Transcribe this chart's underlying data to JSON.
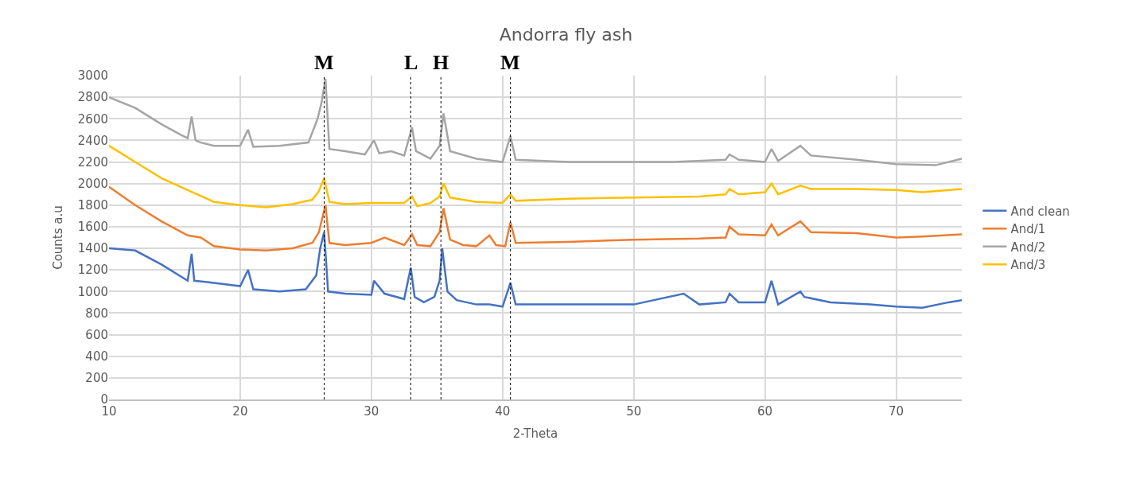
{
  "chart_data": {
    "type": "line",
    "title": "Andorra fly ash",
    "xlabel": "2-Theta",
    "ylabel": "Counts a.u",
    "xlim": [
      10,
      75
    ],
    "xticks": [
      10,
      20,
      30,
      40,
      50,
      60,
      70
    ],
    "ylim": [
      0,
      3000
    ],
    "yticks": [
      0,
      200,
      400,
      600,
      800,
      1000,
      1200,
      1400,
      1600,
      1800,
      2000,
      2200,
      2400,
      2600,
      2800,
      3000
    ],
    "grid": true,
    "legend": "right",
    "marker": "none",
    "line_style": "solid",
    "series": [
      {
        "name": "And clean",
        "color": "#4472c4",
        "x": [
          10,
          12,
          14,
          16,
          16.3,
          16.5,
          18,
          20,
          20.6,
          21,
          23,
          25,
          25.8,
          26.1,
          26.4,
          26.7,
          28,
          30,
          30.2,
          31,
          32.5,
          33.0,
          33.3,
          34,
          34.8,
          35.2,
          35.4,
          35.8,
          36.5,
          38,
          39,
          40,
          40.6,
          41,
          45,
          50,
          53.8,
          55,
          57,
          57.3,
          58,
          60,
          60.5,
          61,
          62.7,
          63,
          65,
          68,
          70,
          72,
          74,
          75
        ],
        "values": [
          1400,
          1380,
          1250,
          1100,
          1350,
          1100,
          1080,
          1050,
          1200,
          1020,
          1000,
          1020,
          1150,
          1400,
          1550,
          1000,
          980,
          970,
          1100,
          980,
          930,
          1220,
          950,
          900,
          950,
          1100,
          1400,
          1000,
          920,
          880,
          880,
          860,
          1080,
          880,
          880,
          880,
          980,
          880,
          900,
          980,
          900,
          900,
          1100,
          880,
          1000,
          950,
          900,
          880,
          860,
          850,
          900,
          920
        ]
      },
      {
        "name": "And/1",
        "color": "#ed7d31",
        "x": [
          10,
          12,
          14,
          16,
          17,
          18,
          20,
          22,
          24,
          25.5,
          26.0,
          26.5,
          26.8,
          28,
          30,
          31,
          32.5,
          33.1,
          33.5,
          34.5,
          35.2,
          35.5,
          36,
          37,
          38,
          39,
          39.5,
          40.2,
          40.6,
          41,
          45,
          50,
          55,
          57,
          57.3,
          58,
          60,
          60.5,
          61,
          62.7,
          63.5,
          67,
          70,
          72,
          75
        ],
        "values": [
          1970,
          1800,
          1650,
          1520,
          1500,
          1420,
          1390,
          1380,
          1400,
          1450,
          1550,
          1800,
          1450,
          1430,
          1450,
          1500,
          1430,
          1530,
          1430,
          1420,
          1550,
          1770,
          1480,
          1430,
          1420,
          1520,
          1430,
          1420,
          1640,
          1450,
          1460,
          1480,
          1490,
          1500,
          1600,
          1530,
          1520,
          1620,
          1520,
          1650,
          1550,
          1540,
          1500,
          1510,
          1530
        ]
      },
      {
        "name": "And/2",
        "color": "#a5a5a5",
        "x": [
          10,
          12,
          14,
          15.5,
          16.0,
          16.3,
          16.6,
          17,
          18,
          20,
          20.6,
          21,
          23,
          25.2,
          25.9,
          26.2,
          26.5,
          26.8,
          28,
          29.5,
          30.2,
          30.6,
          31.5,
          32.5,
          33.1,
          33.4,
          34.5,
          35.2,
          35.5,
          36,
          38,
          40,
          40.6,
          41,
          45,
          50,
          53,
          57,
          57.3,
          58,
          60,
          60.5,
          61,
          62.7,
          63.5,
          67,
          70,
          73,
          75
        ],
        "values": [
          2800,
          2700,
          2550,
          2450,
          2420,
          2620,
          2400,
          2380,
          2350,
          2350,
          2500,
          2340,
          2350,
          2380,
          2600,
          2750,
          2970,
          2320,
          2300,
          2270,
          2400,
          2280,
          2300,
          2260,
          2520,
          2300,
          2230,
          2350,
          2650,
          2300,
          2230,
          2200,
          2440,
          2220,
          2200,
          2200,
          2200,
          2220,
          2270,
          2220,
          2200,
          2320,
          2210,
          2350,
          2260,
          2220,
          2180,
          2170,
          2230
        ]
      },
      {
        "name": "And/3",
        "color": "#ffc000",
        "x": [
          10,
          12,
          14,
          16,
          18,
          20,
          22,
          24,
          25.5,
          26.0,
          26.4,
          26.8,
          28,
          30,
          32.5,
          33.1,
          33.5,
          34.5,
          35.2,
          35.5,
          36,
          38,
          40,
          40.6,
          41,
          45,
          50,
          55,
          57,
          57.3,
          58,
          60,
          60.5,
          61,
          62.7,
          63.5,
          67,
          70,
          72,
          75
        ],
        "values": [
          2350,
          2200,
          2050,
          1940,
          1830,
          1800,
          1780,
          1810,
          1850,
          1930,
          2050,
          1830,
          1810,
          1820,
          1820,
          1880,
          1790,
          1820,
          1880,
          2000,
          1870,
          1830,
          1820,
          1900,
          1840,
          1860,
          1870,
          1880,
          1900,
          1950,
          1900,
          1920,
          2000,
          1900,
          1980,
          1950,
          1950,
          1940,
          1920,
          1950
        ]
      }
    ],
    "ref_lines": [
      {
        "axis": "x",
        "value": 26.4,
        "label": "M",
        "color": "#000000",
        "line_style": "dotted"
      },
      {
        "axis": "x",
        "value": 33.0,
        "label": "L",
        "color": "#000000",
        "line_style": "dotted"
      },
      {
        "axis": "x",
        "value": 35.3,
        "label": "H",
        "color": "#000000",
        "line_style": "dotted"
      },
      {
        "axis": "x",
        "value": 40.6,
        "label": "M",
        "color": "#000000",
        "line_style": "dotted"
      }
    ]
  }
}
